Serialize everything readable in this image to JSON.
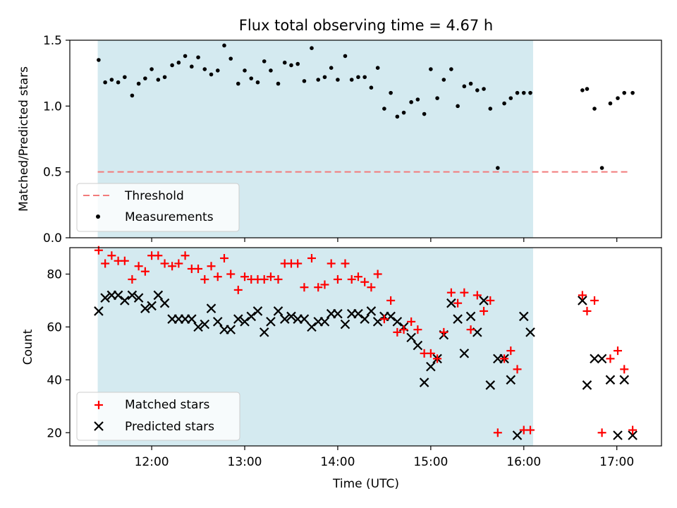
{
  "title": "Flux total observing time = 4.67 h",
  "xlabel": "Time (UTC)",
  "colors": {
    "shade": "#d4eaf0",
    "threshold": "#f27b7b",
    "measurement": "#000000",
    "matched": "#ff0000",
    "predicted": "#000000"
  },
  "chart_data": [
    {
      "type": "scatter",
      "ylabel": "Matched/Predicted stars",
      "xlim": [
        11.12,
        17.48
      ],
      "ylim": [
        0,
        1.5
      ],
      "yticks": [
        0.0,
        0.5,
        1.0,
        1.5
      ],
      "ytick_labels": [
        "0.0",
        "0.5",
        "1.0",
        "1.5"
      ],
      "shaded_x": [
        11.42,
        16.1
      ],
      "threshold": {
        "label": "Threshold",
        "y": 0.5,
        "x": [
          11.42,
          17.15
        ]
      },
      "series": [
        {
          "name": "Measurements",
          "x": [
            11.43,
            11.5,
            11.57,
            11.64,
            11.71,
            11.79,
            11.86,
            11.93,
            12.0,
            12.07,
            12.14,
            12.22,
            12.29,
            12.36,
            12.43,
            12.5,
            12.57,
            12.64,
            12.71,
            12.78,
            12.85,
            12.93,
            13.0,
            13.07,
            13.14,
            13.21,
            13.28,
            13.36,
            13.43,
            13.5,
            13.57,
            13.64,
            13.72,
            13.79,
            13.86,
            13.93,
            14.0,
            14.08,
            14.15,
            14.22,
            14.29,
            14.36,
            14.43,
            14.5,
            14.57,
            14.64,
            14.71,
            14.79,
            14.86,
            14.93,
            15.0,
            15.07,
            15.14,
            15.22,
            15.29,
            15.36,
            15.43,
            15.5,
            15.57,
            15.64,
            15.72,
            15.79,
            15.86,
            15.93,
            16.0,
            16.07,
            16.63,
            16.68,
            16.76,
            16.84,
            16.93,
            17.01,
            17.08,
            17.17
          ],
          "y": [
            1.35,
            1.18,
            1.2,
            1.18,
            1.22,
            1.08,
            1.17,
            1.21,
            1.28,
            1.2,
            1.22,
            1.31,
            1.33,
            1.38,
            1.3,
            1.37,
            1.28,
            1.24,
            1.27,
            1.46,
            1.36,
            1.17,
            1.27,
            1.21,
            1.18,
            1.34,
            1.27,
            1.17,
            1.33,
            1.31,
            1.32,
            1.19,
            1.44,
            1.2,
            1.22,
            1.29,
            1.2,
            1.38,
            1.2,
            1.22,
            1.22,
            1.14,
            1.29,
            0.98,
            1.1,
            0.92,
            0.95,
            1.03,
            1.05,
            0.94,
            1.28,
            1.06,
            1.2,
            1.28,
            1.0,
            1.15,
            1.17,
            1.12,
            1.13,
            0.98,
            0.53,
            1.02,
            1.06,
            1.1,
            1.1,
            1.1,
            1.12,
            1.13,
            0.98,
            0.53,
            1.02,
            1.06,
            1.1,
            1.1
          ]
        }
      ],
      "legend": [
        "Threshold",
        "Measurements"
      ],
      "legend_position": "lower-left"
    },
    {
      "type": "scatter",
      "ylabel": "Count",
      "xlim": [
        11.12,
        17.48
      ],
      "ylim": [
        15,
        90
      ],
      "yticks": [
        20,
        40,
        60,
        80
      ],
      "ytick_labels": [
        "20",
        "40",
        "60",
        "80"
      ],
      "xticks": [
        12,
        13,
        14,
        15,
        16,
        17
      ],
      "xtick_labels": [
        "12:00",
        "13:00",
        "14:00",
        "15:00",
        "16:00",
        "17:00"
      ],
      "shaded_x": [
        11.42,
        16.1
      ],
      "series": [
        {
          "name": "Matched stars",
          "marker": "plus",
          "x": [
            11.43,
            11.5,
            11.57,
            11.64,
            11.71,
            11.79,
            11.86,
            11.93,
            12.0,
            12.07,
            12.14,
            12.22,
            12.29,
            12.36,
            12.43,
            12.5,
            12.57,
            12.64,
            12.71,
            12.78,
            12.85,
            12.93,
            13.0,
            13.07,
            13.14,
            13.21,
            13.28,
            13.36,
            13.43,
            13.5,
            13.57,
            13.64,
            13.72,
            13.79,
            13.86,
            13.93,
            14.0,
            14.08,
            14.15,
            14.22,
            14.29,
            14.36,
            14.43,
            14.5,
            14.57,
            14.64,
            14.71,
            14.79,
            14.86,
            14.93,
            15.0,
            15.07,
            15.14,
            15.22,
            15.29,
            15.36,
            15.43,
            15.5,
            15.57,
            15.64,
            15.72,
            15.79,
            15.86,
            15.93,
            16.0,
            16.07,
            16.63,
            16.68,
            16.76,
            16.84,
            16.93,
            17.01,
            17.08,
            17.17
          ],
          "y": [
            89,
            84,
            87,
            85,
            85,
            78,
            83,
            81,
            87,
            87,
            84,
            83,
            84,
            87,
            82,
            82,
            78,
            83,
            79,
            86,
            80,
            74,
            79,
            78,
            78,
            78,
            79,
            78,
            84,
            84,
            84,
            75,
            86,
            75,
            76,
            84,
            78,
            84,
            78,
            79,
            77,
            75,
            80,
            63,
            70,
            58,
            59,
            62,
            59,
            50,
            50,
            48,
            58,
            73,
            69,
            73,
            59,
            72,
            66,
            70,
            20,
            48,
            51,
            44,
            21,
            21,
            72,
            66,
            70,
            20,
            48,
            51,
            44,
            21
          ]
        },
        {
          "name": "Predicted stars",
          "marker": "x",
          "x": [
            11.43,
            11.5,
            11.57,
            11.64,
            11.71,
            11.79,
            11.86,
            11.93,
            12.0,
            12.07,
            12.14,
            12.22,
            12.29,
            12.36,
            12.43,
            12.5,
            12.57,
            12.64,
            12.71,
            12.78,
            12.85,
            12.93,
            13.0,
            13.07,
            13.14,
            13.21,
            13.28,
            13.36,
            13.43,
            13.5,
            13.57,
            13.64,
            13.72,
            13.79,
            13.86,
            13.93,
            14.0,
            14.08,
            14.15,
            14.22,
            14.29,
            14.36,
            14.43,
            14.5,
            14.57,
            14.64,
            14.71,
            14.79,
            14.86,
            14.93,
            15.0,
            15.07,
            15.14,
            15.22,
            15.29,
            15.36,
            15.43,
            15.5,
            15.57,
            15.64,
            15.72,
            15.79,
            15.86,
            15.93,
            16.0,
            16.07,
            16.63,
            16.68,
            16.76,
            16.84,
            16.93,
            17.01,
            17.08,
            17.17
          ],
          "y": [
            66,
            71,
            72,
            72,
            70,
            72,
            71,
            67,
            68,
            72,
            69,
            63,
            63,
            63,
            63,
            60,
            61,
            67,
            62,
            59,
            59,
            63,
            62,
            64,
            66,
            58,
            62,
            66,
            63,
            64,
            63,
            63,
            60,
            62,
            62,
            65,
            65,
            61,
            65,
            65,
            63,
            66,
            62,
            64,
            64,
            62,
            60,
            56,
            53,
            39,
            45,
            48,
            57,
            69,
            63,
            50,
            64,
            58,
            70,
            38,
            48,
            48,
            40,
            19,
            64,
            58,
            70,
            38,
            48,
            48,
            40,
            19,
            40,
            19
          ]
        }
      ],
      "legend": [
        "Matched stars",
        "Predicted stars"
      ],
      "legend_position": "lower-left"
    }
  ]
}
